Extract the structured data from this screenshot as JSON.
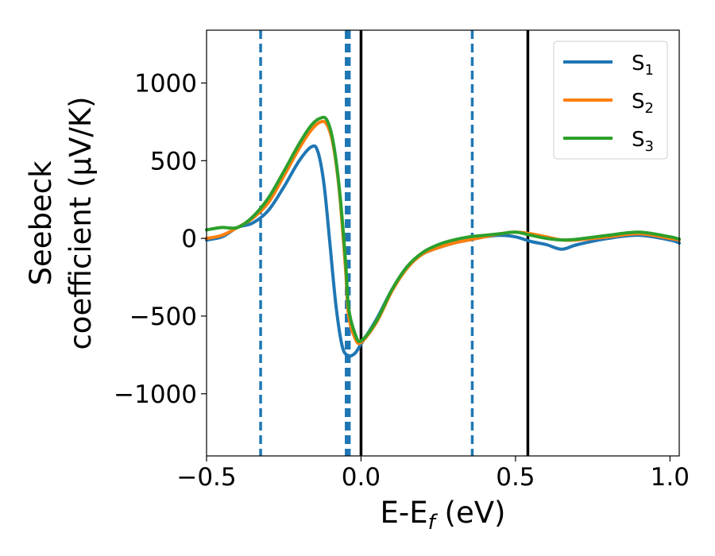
{
  "chart_data": {
    "type": "line",
    "xlabel_main": "E-E",
    "xlabel_sub": "f",
    "xlabel_unit": " (eV)",
    "ylabel_line1": "Seebeck",
    "ylabel_line2": "coefficient  (μV/K)",
    "xlim": [
      -0.5,
      1.03
    ],
    "ylim": [
      -1400,
      1340
    ],
    "xticks": [
      -0.5,
      0.0,
      0.5,
      1.0
    ],
    "xtick_labels": [
      "−0.5",
      "0.0",
      "0.5",
      "1.0"
    ],
    "yticks": [
      -1000,
      -500,
      0,
      500,
      1000
    ],
    "ytick_labels": [
      "−1000",
      "−500",
      "0",
      "500",
      "1000"
    ],
    "grid": false,
    "legend_position": "top-right",
    "series": [
      {
        "name_main": "S",
        "name_sub": "1",
        "color": "#1f77b4",
        "x": [
          -0.5,
          -0.45,
          -0.4,
          -0.35,
          -0.3,
          -0.25,
          -0.2,
          -0.16,
          -0.14,
          -0.12,
          -0.1,
          -0.08,
          -0.06,
          -0.04,
          -0.02,
          0.0,
          0.05,
          0.1,
          0.15,
          0.2,
          0.25,
          0.3,
          0.35,
          0.4,
          0.45,
          0.5,
          0.55,
          0.6,
          0.65,
          0.7,
          0.8,
          0.9,
          1.0,
          1.03
        ],
        "y": [
          -10,
          10,
          70,
          100,
          180,
          330,
          500,
          590,
          560,
          350,
          -50,
          -450,
          -700,
          -755,
          -740,
          -680,
          -520,
          -330,
          -180,
          -100,
          -60,
          -30,
          -10,
          10,
          20,
          10,
          -20,
          -40,
          -70,
          -40,
          0,
          20,
          -10,
          -30
        ]
      },
      {
        "name_main": "S",
        "name_sub": "2",
        "color": "#ff7f0e",
        "x": [
          -0.5,
          -0.45,
          -0.4,
          -0.35,
          -0.3,
          -0.25,
          -0.2,
          -0.16,
          -0.13,
          -0.11,
          -0.09,
          -0.07,
          -0.05,
          -0.04,
          -0.02,
          0.0,
          0.05,
          0.1,
          0.15,
          0.2,
          0.25,
          0.3,
          0.35,
          0.4,
          0.45,
          0.5,
          0.55,
          0.6,
          0.65,
          0.7,
          0.8,
          0.9,
          1.0,
          1.03
        ],
        "y": [
          0,
          20,
          70,
          130,
          230,
          400,
          580,
          700,
          750,
          730,
          600,
          300,
          -200,
          -500,
          -640,
          -670,
          -540,
          -340,
          -190,
          -100,
          -60,
          -30,
          -10,
          10,
          30,
          40,
          30,
          10,
          -10,
          -10,
          10,
          30,
          0,
          -10
        ]
      },
      {
        "name_main": "S",
        "name_sub": "3",
        "color": "#2ca02c",
        "x": [
          -0.5,
          -0.45,
          -0.4,
          -0.35,
          -0.3,
          -0.25,
          -0.2,
          -0.16,
          -0.13,
          -0.11,
          -0.09,
          -0.07,
          -0.05,
          -0.04,
          -0.02,
          0.0,
          0.05,
          0.1,
          0.15,
          0.2,
          0.25,
          0.3,
          0.35,
          0.4,
          0.45,
          0.5,
          0.55,
          0.6,
          0.65,
          0.7,
          0.8,
          0.9,
          1.0,
          1.03
        ],
        "y": [
          55,
          70,
          70,
          140,
          260,
          430,
          610,
          730,
          775,
          760,
          620,
          320,
          -150,
          -450,
          -610,
          -660,
          -530,
          -330,
          -180,
          -90,
          -40,
          -10,
          10,
          20,
          30,
          40,
          20,
          0,
          -10,
          -5,
          20,
          40,
          10,
          -5
        ]
      }
    ],
    "vlines_dashed": {
      "color": "#1f77b4",
      "x": [
        -0.325,
        -0.048,
        -0.043,
        -0.038,
        0.36
      ]
    },
    "vlines_solid": {
      "color": "#000000",
      "x": [
        0.0,
        0.54
      ]
    }
  }
}
